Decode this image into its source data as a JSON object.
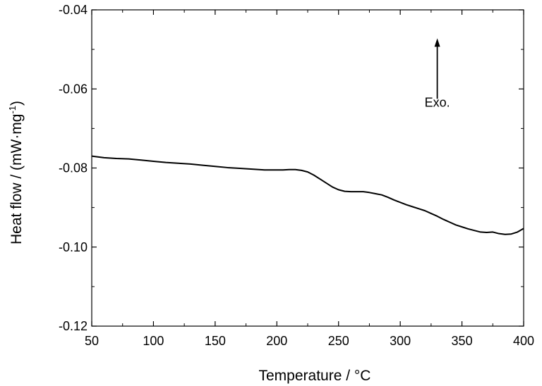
{
  "chart_data": {
    "type": "line",
    "title": "",
    "xlabel": "Temperature / ",
    "xlabel_unit": "°C",
    "ylabel": "Heat flow / (mW·mg",
    "ylabel_unit_suffix": ")",
    "ylabel_exp": "-1",
    "xlim": [
      50,
      400
    ],
    "ylim": [
      -0.12,
      -0.04
    ],
    "x_ticks": [
      50,
      100,
      150,
      200,
      250,
      300,
      350,
      400
    ],
    "y_ticks": [
      -0.04,
      -0.06,
      -0.08,
      -0.1,
      -0.12
    ],
    "x_tick_labels": [
      "50",
      "100",
      "150",
      "200",
      "250",
      "300",
      "350",
      "400"
    ],
    "y_tick_labels": [
      "-0.04",
      "-0.06",
      "-0.08",
      "-0.10",
      "-0.12"
    ],
    "grid": false,
    "annotations": [
      {
        "text": "Exo.",
        "x": 330,
        "y": -0.0645,
        "arrow_from": [
          330,
          -0.0625
        ],
        "arrow_to": [
          330,
          -0.0472
        ]
      }
    ],
    "series": [
      {
        "color": "#000000",
        "x": [
          50,
          60,
          70,
          80,
          90,
          100,
          110,
          120,
          130,
          140,
          150,
          160,
          170,
          180,
          190,
          200,
          205,
          210,
          215,
          220,
          225,
          230,
          235,
          240,
          245,
          250,
          255,
          260,
          265,
          270,
          275,
          280,
          285,
          290,
          295,
          300,
          305,
          310,
          315,
          320,
          325,
          330,
          335,
          340,
          345,
          350,
          355,
          360,
          365,
          370,
          375,
          380,
          385,
          390,
          395,
          400
        ],
        "y": [
          -0.077,
          -0.0774,
          -0.0776,
          -0.0777,
          -0.078,
          -0.0783,
          -0.0786,
          -0.0788,
          -0.079,
          -0.0793,
          -0.0796,
          -0.0799,
          -0.0801,
          -0.0803,
          -0.0805,
          -0.0805,
          -0.0805,
          -0.0804,
          -0.0804,
          -0.0806,
          -0.081,
          -0.0818,
          -0.0828,
          -0.0838,
          -0.0848,
          -0.0855,
          -0.0859,
          -0.086,
          -0.086,
          -0.086,
          -0.0862,
          -0.0865,
          -0.0868,
          -0.0874,
          -0.0881,
          -0.0887,
          -0.0893,
          -0.0898,
          -0.0903,
          -0.0908,
          -0.0915,
          -0.0922,
          -0.093,
          -0.0937,
          -0.0944,
          -0.0949,
          -0.0954,
          -0.0958,
          -0.0962,
          -0.0963,
          -0.0962,
          -0.0966,
          -0.0968,
          -0.0967,
          -0.0962,
          -0.0953
        ]
      }
    ]
  }
}
